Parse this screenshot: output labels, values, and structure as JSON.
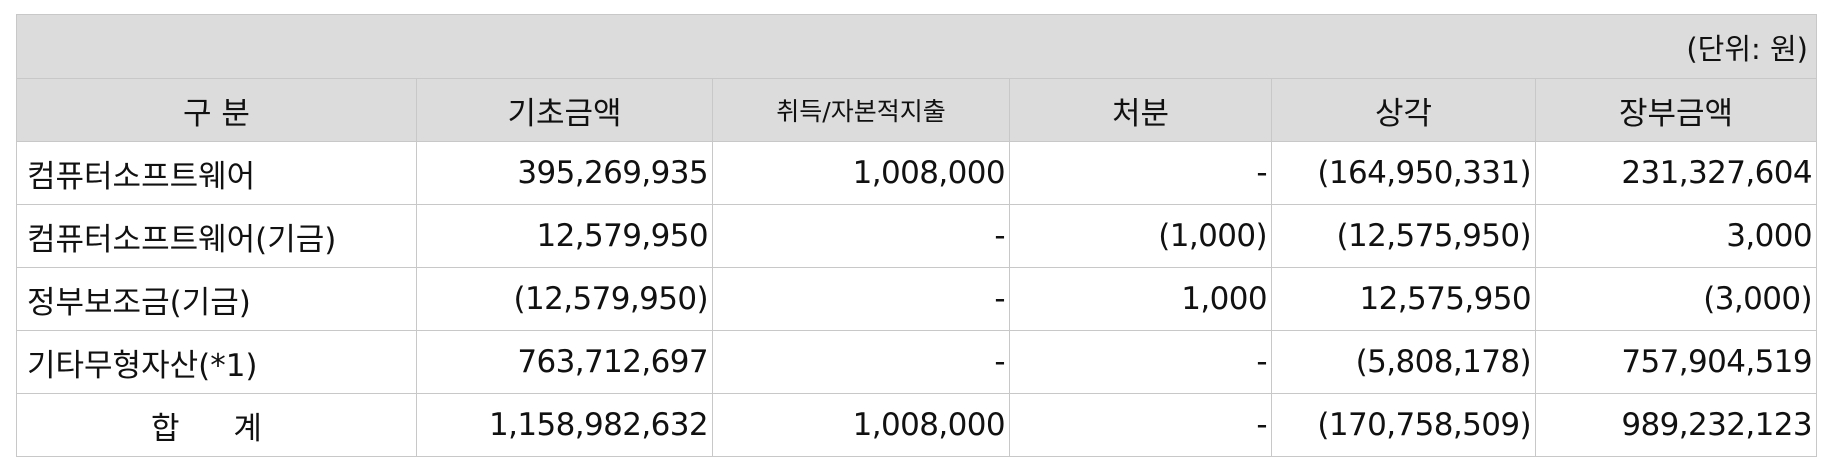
{
  "unit_label": "(단위: 원)",
  "headers": [
    "구 분",
    "기초금액",
    "취득/자본적지출",
    "처분",
    "상각",
    "장부금액"
  ],
  "rows": [
    {
      "label": "컴퓨터소프트웨어",
      "values": [
        "395,269,935",
        "1,008,000",
        "-",
        "(164,950,331)",
        "231,327,604"
      ]
    },
    {
      "label": "컴퓨터소프트웨어(기금)",
      "values": [
        "12,579,950",
        "-",
        "(1,000)",
        "(12,575,950)",
        "3,000"
      ]
    },
    {
      "label": "정부보조금(기금)",
      "values": [
        "(12,579,950)",
        "-",
        "1,000",
        "12,575,950",
        "(3,000)"
      ]
    },
    {
      "label": "기타무형자산(*1)",
      "values": [
        "763,712,697",
        "-",
        "-",
        "(5,808,178)",
        "757,904,519"
      ]
    }
  ],
  "total": {
    "label": "합 계",
    "values": [
      "1,158,982,632",
      "1,008,000",
      "-",
      "(170,758,509)",
      "989,232,123"
    ]
  }
}
